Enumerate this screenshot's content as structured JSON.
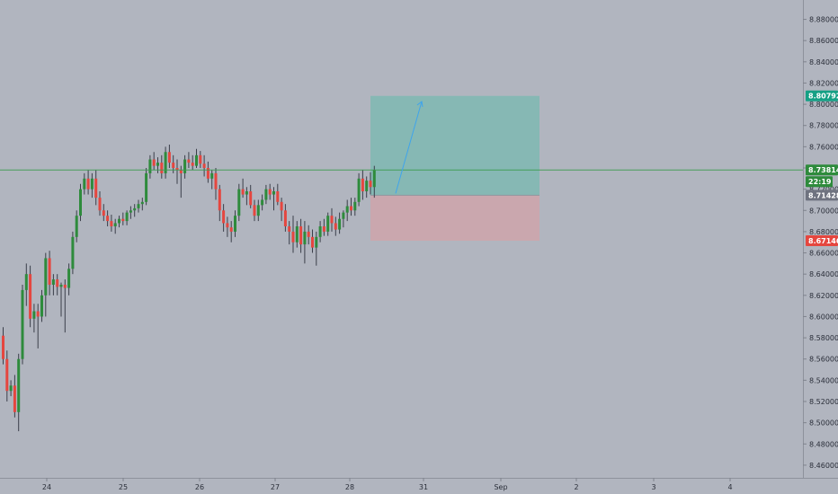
{
  "chart_data": {
    "type": "candlestick",
    "instrument_note": "",
    "x_ticks": [
      "24",
      "25",
      "26",
      "27",
      "28",
      "31",
      "Sep",
      "2",
      "3",
      "4"
    ],
    "y_ticks": [
      "8.88000",
      "8.86000",
      "8.84000",
      "8.82000",
      "8.80000",
      "8.78000",
      "8.76000",
      "8.74000",
      "8.72000",
      "8.70000",
      "8.68000",
      "8.66000",
      "8.64000",
      "8.62000",
      "8.60000",
      "8.58000",
      "8.56000",
      "8.54000",
      "8.52000",
      "8.50000",
      "8.48000",
      "8.46000"
    ],
    "ylim": [
      8.454,
      8.894
    ],
    "badges": {
      "target": {
        "value": "8.80792",
        "color": "#16a085"
      },
      "last_price": {
        "value": "8.73814",
        "color": "#2e8b3c"
      },
      "countdown": {
        "value": "22:19",
        "color": "#2e8b3c"
      },
      "entry": {
        "value": "8.71428",
        "color": "#6f7380"
      },
      "stop": {
        "value": "8.67146",
        "color": "#e5463f"
      }
    },
    "position": {
      "type": "long",
      "entry": 8.71428,
      "target": 8.80792,
      "stop": 8.67146,
      "profit_color": "#7fb8b2",
      "loss_color": "#cfa5aa"
    },
    "colors": {
      "up": "#2e8b3c",
      "down": "#e5463f",
      "wick": "#3b3f4a",
      "price_line": "#3d9a4e",
      "arrow": "#3fa4ec"
    },
    "grid": false,
    "candles": [
      [
        8.582,
        8.59,
        8.555,
        8.56
      ],
      [
        8.56,
        8.568,
        8.52,
        8.53
      ],
      [
        8.53,
        8.54,
        8.525,
        8.535
      ],
      [
        8.535,
        8.545,
        8.505,
        8.51
      ],
      [
        8.51,
        8.565,
        8.492,
        8.56
      ],
      [
        8.56,
        8.63,
        8.555,
        8.625
      ],
      [
        8.625,
        8.65,
        8.61,
        8.64
      ],
      [
        8.64,
        8.648,
        8.59,
        8.598
      ],
      [
        8.598,
        8.612,
        8.585,
        8.605
      ],
      [
        8.605,
        8.612,
        8.57,
        8.6
      ],
      [
        8.6,
        8.625,
        8.595,
        8.62
      ],
      [
        8.62,
        8.66,
        8.6,
        8.655
      ],
      [
        8.655,
        8.662,
        8.62,
        8.63
      ],
      [
        8.63,
        8.64,
        8.62,
        8.635
      ],
      [
        8.635,
        8.64,
        8.62,
        8.628
      ],
      [
        8.628,
        8.632,
        8.6,
        8.63
      ],
      [
        8.63,
        8.635,
        8.585,
        8.627
      ],
      [
        8.627,
        8.65,
        8.62,
        8.645
      ],
      [
        8.645,
        8.68,
        8.64,
        8.675
      ],
      [
        8.675,
        8.7,
        8.67,
        8.695
      ],
      [
        8.695,
        8.725,
        8.69,
        8.72
      ],
      [
        8.72,
        8.735,
        8.715,
        8.73
      ],
      [
        8.73,
        8.738,
        8.715,
        8.72
      ],
      [
        8.72,
        8.735,
        8.712,
        8.73
      ],
      [
        8.73,
        8.738,
        8.705,
        8.712
      ],
      [
        8.712,
        8.718,
        8.695,
        8.7
      ],
      [
        8.7,
        8.706,
        8.69,
        8.695
      ],
      [
        8.695,
        8.7,
        8.685,
        8.69
      ],
      [
        8.69,
        8.696,
        8.68,
        8.685
      ],
      [
        8.685,
        8.692,
        8.678,
        8.688
      ],
      [
        8.688,
        8.695,
        8.684,
        8.692
      ],
      [
        8.692,
        8.698,
        8.686,
        8.69
      ],
      [
        8.69,
        8.7,
        8.686,
        8.698
      ],
      [
        8.698,
        8.704,
        8.692,
        8.7
      ],
      [
        8.7,
        8.706,
        8.694,
        8.702
      ],
      [
        8.702,
        8.71,
        8.698,
        8.706
      ],
      [
        8.706,
        8.712,
        8.7,
        8.708
      ],
      [
        8.708,
        8.74,
        8.705,
        8.735
      ],
      [
        8.735,
        8.752,
        8.73,
        8.748
      ],
      [
        8.748,
        8.755,
        8.738,
        8.742
      ],
      [
        8.742,
        8.75,
        8.735,
        8.745
      ],
      [
        8.745,
        8.752,
        8.73,
        8.735
      ],
      [
        8.735,
        8.76,
        8.73,
        8.755
      ],
      [
        8.755,
        8.762,
        8.74,
        8.745
      ],
      [
        8.745,
        8.752,
        8.735,
        8.74
      ],
      [
        8.74,
        8.748,
        8.725,
        8.738
      ],
      [
        8.738,
        8.742,
        8.712,
        8.735
      ],
      [
        8.735,
        8.752,
        8.73,
        8.748
      ],
      [
        8.748,
        8.755,
        8.74,
        8.745
      ],
      [
        8.745,
        8.752,
        8.738,
        8.742
      ],
      [
        8.742,
        8.758,
        8.74,
        8.752
      ],
      [
        8.752,
        8.756,
        8.74,
        8.744
      ],
      [
        8.744,
        8.752,
        8.732,
        8.74
      ],
      [
        8.74,
        8.746,
        8.726,
        8.73
      ],
      [
        8.73,
        8.738,
        8.72,
        8.735
      ],
      [
        8.735,
        8.74,
        8.71,
        8.72
      ],
      [
        8.72,
        8.724,
        8.69,
        8.7
      ],
      [
        8.7,
        8.706,
        8.68,
        8.688
      ],
      [
        8.688,
        8.694,
        8.675,
        8.684
      ],
      [
        8.684,
        8.69,
        8.67,
        8.68
      ],
      [
        8.68,
        8.7,
        8.675,
        8.695
      ],
      [
        8.695,
        8.725,
        8.69,
        8.72
      ],
      [
        8.72,
        8.73,
        8.712,
        8.715
      ],
      [
        8.715,
        8.722,
        8.705,
        8.718
      ],
      [
        8.718,
        8.724,
        8.702,
        8.705
      ],
      [
        8.705,
        8.71,
        8.69,
        8.695
      ],
      [
        8.695,
        8.71,
        8.69,
        8.705
      ],
      [
        8.705,
        8.715,
        8.7,
        8.71
      ],
      [
        8.71,
        8.724,
        8.706,
        8.72
      ],
      [
        8.72,
        8.725,
        8.71,
        8.715
      ],
      [
        8.715,
        8.722,
        8.7,
        8.718
      ],
      [
        8.718,
        8.725,
        8.705,
        8.708
      ],
      [
        8.708,
        8.712,
        8.69,
        8.7
      ],
      [
        8.7,
        8.706,
        8.68,
        8.685
      ],
      [
        8.685,
        8.69,
        8.668,
        8.68
      ],
      [
        8.68,
        8.695,
        8.66,
        8.67
      ],
      [
        8.67,
        8.69,
        8.665,
        8.685
      ],
      [
        8.685,
        8.692,
        8.66,
        8.668
      ],
      [
        8.668,
        8.69,
        8.65,
        8.68
      ],
      [
        8.68,
        8.686,
        8.668,
        8.675
      ],
      [
        8.675,
        8.682,
        8.66,
        8.665
      ],
      [
        8.665,
        8.68,
        8.648,
        8.675
      ],
      [
        8.675,
        8.69,
        8.67,
        8.685
      ],
      [
        8.685,
        8.692,
        8.676,
        8.68
      ],
      [
        8.68,
        8.698,
        8.676,
        8.695
      ],
      [
        8.695,
        8.702,
        8.68,
        8.688
      ],
      [
        8.688,
        8.694,
        8.676,
        8.682
      ],
      [
        8.682,
        8.698,
        8.678,
        8.692
      ],
      [
        8.692,
        8.7,
        8.684,
        8.698
      ],
      [
        8.698,
        8.71,
        8.69,
        8.704
      ],
      [
        8.704,
        8.712,
        8.695,
        8.7
      ],
      [
        8.7,
        8.712,
        8.695,
        8.708
      ],
      [
        8.708,
        8.735,
        8.704,
        8.73
      ],
      [
        8.73,
        8.738,
        8.71,
        8.718
      ],
      [
        8.718,
        8.732,
        8.712,
        8.728
      ],
      [
        8.728,
        8.736,
        8.715,
        8.722
      ],
      [
        8.722,
        8.742,
        8.712,
        8.738
      ]
    ]
  }
}
